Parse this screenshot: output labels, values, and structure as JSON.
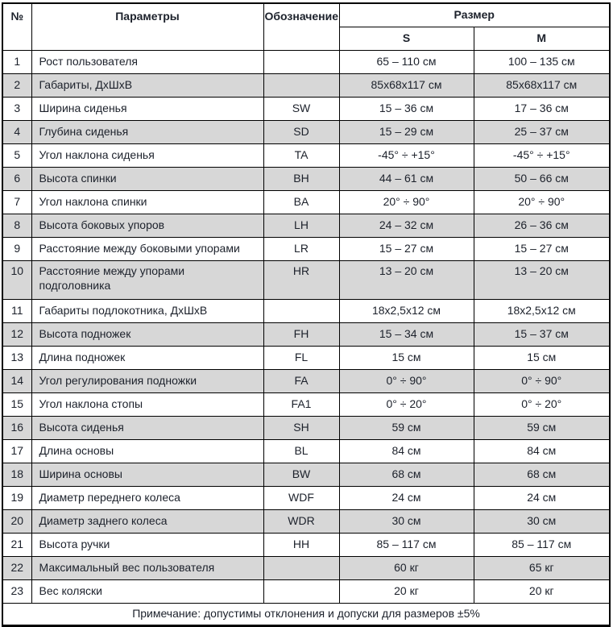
{
  "table": {
    "headers": {
      "num": "№",
      "parameters": "Параметры",
      "designation": "Обозначение",
      "size": "Размер",
      "size_s": "S",
      "size_m": "M"
    },
    "rows": [
      {
        "num": "1",
        "param": "Рост пользователя",
        "code": "",
        "s": "65 – 110 см",
        "m": "100 – 135 см"
      },
      {
        "num": "2",
        "param": "Габариты, ДхШхВ",
        "code": "",
        "s": "85х68х117 см",
        "m": "85х68х117 см"
      },
      {
        "num": "3",
        "param": "Ширина сиденья",
        "code": "SW",
        "s": "15 – 36 см",
        "m": "17 – 36 см"
      },
      {
        "num": "4",
        "param": "Глубина сиденья",
        "code": "SD",
        "s": "15 – 29 см",
        "m": "25 – 37 см"
      },
      {
        "num": "5",
        "param": "Угол наклона сиденья",
        "code": "TA",
        "s": "-45° ÷ +15°",
        "m": "-45° ÷ +15°"
      },
      {
        "num": "6",
        "param": "Высота спинки",
        "code": "BH",
        "s": "44 – 61 см",
        "m": "50 – 66 см"
      },
      {
        "num": "7",
        "param": "Угол наклона спинки",
        "code": "BA",
        "s": "20° ÷ 90°",
        "m": "20° ÷ 90°"
      },
      {
        "num": "8",
        "param": "Высота боковых упоров",
        "code": "LH",
        "s": "24 – 32 см",
        "m": "26 – 36 см"
      },
      {
        "num": "9",
        "param": "Расстояние между боковыми упорами",
        "code": "LR",
        "s": "15 – 27 см",
        "m": "15 – 27 см"
      },
      {
        "num": "10",
        "param": "Расстояние между упорами\nподголовника",
        "code": "HR",
        "s": "13 – 20 см",
        "m": "13 – 20 см"
      },
      {
        "num": "11",
        "param": "Габариты подлокотника, ДхШхВ",
        "code": "",
        "s": "18х2,5х12 см",
        "m": "18х2,5х12 см"
      },
      {
        "num": "12",
        "param": "Высота подножек",
        "code": "FH",
        "s": "15 – 34 см",
        "m": "15 – 37 см"
      },
      {
        "num": "13",
        "param": "Длина подножек",
        "code": "FL",
        "s": "15 см",
        "m": "15 см"
      },
      {
        "num": "14",
        "param": "Угол регулирования подножки",
        "code": "FA",
        "s": "0° ÷ 90°",
        "m": "0° ÷ 90°"
      },
      {
        "num": "15",
        "param": "Угол наклона стопы",
        "code": "FA1",
        "s": "0° ÷ 20°",
        "m": "0° ÷ 20°"
      },
      {
        "num": "16",
        "param": "Высота сиденья",
        "code": "SH",
        "s": "59 см",
        "m": "59 см"
      },
      {
        "num": "17",
        "param": "Длина основы",
        "code": "BL",
        "s": "84 см",
        "m": "84 см"
      },
      {
        "num": "18",
        "param": "Ширина основы",
        "code": "BW",
        "s": "68 см",
        "m": "68 см"
      },
      {
        "num": "19",
        "param": "Диаметр переднего колеса",
        "code": "WDF",
        "s": "24 см",
        "m": "24 см"
      },
      {
        "num": "20",
        "param": "Диаметр заднего колеса",
        "code": "WDR",
        "s": "30 см",
        "m": "30 см"
      },
      {
        "num": "21",
        "param": "Высота ручки",
        "code": "HH",
        "s": "85 – 117 см",
        "m": "85 – 117 см"
      },
      {
        "num": "22",
        "param": "Максимальный вес пользователя",
        "code": "",
        "s": "60 кг",
        "m": "65 кг"
      },
      {
        "num": "23",
        "param": "Вес коляски",
        "code": "",
        "s": "20 кг",
        "m": "20 кг"
      }
    ],
    "note": "Примечание: допустимы отклонения и допуски для размеров ±5%"
  },
  "colors": {
    "row_alt_background": "#d7d7d7",
    "border": "#000000",
    "text": "#1c212b"
  }
}
